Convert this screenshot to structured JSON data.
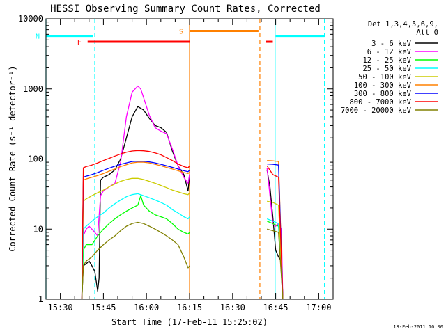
{
  "chart_data": {
    "type": "line",
    "title": "HESSI Observing Summary Count Rates, Corrected",
    "xlabel": "Start Time (17-Feb-11 15:25:02)",
    "ylabel": "Corrected Count Rate (s⁻¹ detector⁻¹)",
    "x_unit": "minutes since 15:25:02",
    "xlim": [
      0,
      100
    ],
    "ylim": [
      1,
      10000
    ],
    "yscale": "log",
    "xticks": [
      {
        "x": 5,
        "label": "15:30"
      },
      {
        "x": 20,
        "label": "15:45"
      },
      {
        "x": 35,
        "label": "16:00"
      },
      {
        "x": 50,
        "label": "16:15"
      },
      {
        "x": 65,
        "label": "16:30"
      },
      {
        "x": 80,
        "label": "16:45"
      },
      {
        "x": 95,
        "label": "17:00"
      }
    ],
    "yticks": [
      {
        "y": 1,
        "label": "1"
      },
      {
        "y": 10,
        "label": "10"
      },
      {
        "y": 100,
        "label": "100"
      },
      {
        "y": 1000,
        "label": "1000"
      },
      {
        "y": 10000,
        "label": "10000"
      }
    ],
    "legend_header": [
      "Det 1,3,4,5,6,9,",
      "Att 0"
    ],
    "legend_position": "right",
    "date_stamp": "18-Feb-2011 10:00",
    "series": [
      {
        "name": "3 - 6 keV",
        "color": "#000000",
        "segments": [
          [
            [
              12.5,
              1
            ],
            [
              13,
              3
            ],
            [
              14,
              3.2
            ],
            [
              15,
              3.5
            ],
            [
              16,
              3
            ],
            [
              17,
              2.5
            ],
            [
              18,
              1.3
            ],
            [
              18.5,
              2
            ],
            [
              19,
              50
            ],
            [
              20,
              55
            ],
            [
              22,
              60
            ],
            [
              24,
              70
            ],
            [
              26,
              100
            ],
            [
              28,
              200
            ],
            [
              30,
              400
            ],
            [
              32,
              560
            ],
            [
              34,
              500
            ],
            [
              36,
              380
            ],
            [
              38,
              300
            ],
            [
              40,
              280
            ],
            [
              42,
              240
            ],
            [
              44,
              130
            ],
            [
              46,
              80
            ],
            [
              48,
              60
            ],
            [
              49.5,
              35
            ],
            [
              50,
              60
            ]
          ],
          [
            [
              77,
              70
            ],
            [
              78,
              40
            ],
            [
              79,
              15
            ],
            [
              80,
              5
            ],
            [
              81,
              4
            ],
            [
              82,
              3.5
            ],
            [
              82.5,
              1
            ]
          ]
        ]
      },
      {
        "name": "6 - 12 keV",
        "color": "#ff00ff",
        "segments": [
          [
            [
              12.5,
              1
            ],
            [
              13,
              8
            ],
            [
              14,
              10
            ],
            [
              15,
              11
            ],
            [
              16,
              10
            ],
            [
              17,
              9
            ],
            [
              18,
              8
            ],
            [
              19,
              30
            ],
            [
              20,
              35
            ],
            [
              22,
              40
            ],
            [
              24,
              45
            ],
            [
              26,
              90
            ],
            [
              28,
              400
            ],
            [
              30,
              900
            ],
            [
              32,
              1100
            ],
            [
              33,
              1000
            ],
            [
              34,
              750
            ],
            [
              36,
              420
            ],
            [
              38,
              280
            ],
            [
              40,
              250
            ],
            [
              42,
              230
            ],
            [
              44,
              140
            ],
            [
              46,
              80
            ],
            [
              48,
              55
            ],
            [
              49.5,
              45
            ],
            [
              50,
              60
            ]
          ],
          [
            [
              77,
              75
            ],
            [
              78,
              30
            ],
            [
              79,
              12
            ],
            [
              80,
              11
            ],
            [
              81,
              12
            ],
            [
              82,
              10
            ],
            [
              82.5,
              1
            ]
          ]
        ]
      },
      {
        "name": "12 - 25 keV",
        "color": "#00ff00",
        "segments": [
          [
            [
              12.5,
              1
            ],
            [
              13,
              5
            ],
            [
              14,
              6
            ],
            [
              16,
              6
            ],
            [
              18,
              8
            ],
            [
              20,
              10
            ],
            [
              22,
              12
            ],
            [
              24,
              14
            ],
            [
              26,
              16
            ],
            [
              28,
              18
            ],
            [
              30,
              20
            ],
            [
              32,
              22
            ],
            [
              33,
              30
            ],
            [
              34,
              22
            ],
            [
              36,
              18
            ],
            [
              38,
              16
            ],
            [
              40,
              15
            ],
            [
              42,
              14
            ],
            [
              44,
              12
            ],
            [
              46,
              10
            ],
            [
              48,
              9
            ],
            [
              49.5,
              8.5
            ],
            [
              50,
              9
            ]
          ],
          [
            [
              77,
              13
            ],
            [
              79,
              12
            ],
            [
              81,
              11
            ],
            [
              82.5,
              1
            ]
          ]
        ]
      },
      {
        "name": "25 - 50 keV",
        "color": "#00ffff",
        "segments": [
          [
            [
              12.5,
              1
            ],
            [
              13,
              10
            ],
            [
              14,
              11
            ],
            [
              16,
              13
            ],
            [
              18,
              15
            ],
            [
              20,
              17
            ],
            [
              22,
              20
            ],
            [
              24,
              23
            ],
            [
              26,
              26
            ],
            [
              28,
              29
            ],
            [
              30,
              31
            ],
            [
              32,
              32
            ],
            [
              34,
              30
            ],
            [
              36,
              28
            ],
            [
              38,
              26
            ],
            [
              40,
              24
            ],
            [
              42,
              22
            ],
            [
              44,
              19
            ],
            [
              46,
              17
            ],
            [
              48,
              15
            ],
            [
              49.5,
              14
            ],
            [
              50,
              15
            ]
          ],
          [
            [
              77,
              14
            ],
            [
              79,
              13
            ],
            [
              81,
              12
            ],
            [
              82.5,
              1
            ]
          ]
        ]
      },
      {
        "name": "50 - 100 keV",
        "color": "#cccc00",
        "segments": [
          [
            [
              12.5,
              1
            ],
            [
              13,
              25
            ],
            [
              14,
              27
            ],
            [
              16,
              30
            ],
            [
              18,
              33
            ],
            [
              20,
              36
            ],
            [
              22,
              40
            ],
            [
              24,
              44
            ],
            [
              26,
              48
            ],
            [
              28,
              51
            ],
            [
              30,
              53
            ],
            [
              32,
              53
            ],
            [
              34,
              51
            ],
            [
              36,
              48
            ],
            [
              38,
              45
            ],
            [
              40,
              42
            ],
            [
              42,
              39
            ],
            [
              44,
              36
            ],
            [
              46,
              34
            ],
            [
              48,
              32
            ],
            [
              49.5,
              31
            ],
            [
              50,
              33
            ]
          ],
          [
            [
              77,
              25
            ],
            [
              79,
              24
            ],
            [
              81,
              22
            ],
            [
              82.5,
              1
            ]
          ]
        ]
      },
      {
        "name": "100 - 300 keV",
        "color": "#ff8000",
        "segments": [
          [
            [
              12.5,
              1
            ],
            [
              13,
              50
            ],
            [
              14,
              52
            ],
            [
              16,
              55
            ],
            [
              18,
              58
            ],
            [
              20,
              62
            ],
            [
              22,
              67
            ],
            [
              24,
              72
            ],
            [
              26,
              78
            ],
            [
              28,
              83
            ],
            [
              30,
              88
            ],
            [
              32,
              90
            ],
            [
              34,
              90
            ],
            [
              36,
              88
            ],
            [
              38,
              84
            ],
            [
              40,
              80
            ],
            [
              42,
              76
            ],
            [
              44,
              72
            ],
            [
              46,
              68
            ],
            [
              48,
              64
            ],
            [
              49.5,
              62
            ],
            [
              50,
              65
            ]
          ],
          [
            [
              77,
              95
            ],
            [
              79,
              94
            ],
            [
              81,
              92
            ],
            [
              82.5,
              1
            ]
          ]
        ]
      },
      {
        "name": "300 - 800 keV",
        "color": "#0000ff",
        "segments": [
          [
            [
              12.5,
              1
            ],
            [
              13,
              55
            ],
            [
              14,
              57
            ],
            [
              16,
              60
            ],
            [
              18,
              64
            ],
            [
              20,
              69
            ],
            [
              22,
              74
            ],
            [
              24,
              79
            ],
            [
              26,
              84
            ],
            [
              28,
              88
            ],
            [
              30,
              92
            ],
            [
              32,
              93
            ],
            [
              34,
              93
            ],
            [
              36,
              91
            ],
            [
              38,
              88
            ],
            [
              40,
              84
            ],
            [
              42,
              80
            ],
            [
              44,
              76
            ],
            [
              46,
              72
            ],
            [
              48,
              68
            ],
            [
              49.5,
              66
            ],
            [
              50,
              69
            ]
          ],
          [
            [
              77,
              85
            ],
            [
              79,
              84
            ],
            [
              81,
              82
            ],
            [
              82.5,
              1
            ]
          ]
        ]
      },
      {
        "name": "800 - 7000 keV",
        "color": "#ff0000",
        "segments": [
          [
            [
              12.5,
              1
            ],
            [
              13,
              75
            ],
            [
              14,
              78
            ],
            [
              16,
              82
            ],
            [
              18,
              88
            ],
            [
              20,
              95
            ],
            [
              22,
              102
            ],
            [
              24,
              110
            ],
            [
              26,
              118
            ],
            [
              28,
              125
            ],
            [
              30,
              130
            ],
            [
              32,
              132
            ],
            [
              34,
              131
            ],
            [
              36,
              128
            ],
            [
              38,
              122
            ],
            [
              40,
              115
            ],
            [
              42,
              105
            ],
            [
              44,
              95
            ],
            [
              46,
              85
            ],
            [
              48,
              78
            ],
            [
              49.5,
              75
            ],
            [
              50,
              80
            ]
          ],
          [
            [
              77,
              80
            ],
            [
              79,
              60
            ],
            [
              81,
              55
            ],
            [
              82.5,
              1
            ]
          ]
        ]
      },
      {
        "name": "7000 - 20000 keV",
        "color": "#808000",
        "segments": [
          [
            [
              12.5,
              1
            ],
            [
              13,
              3
            ],
            [
              14,
              3.5
            ],
            [
              16,
              4
            ],
            [
              18,
              5
            ],
            [
              20,
              6
            ],
            [
              22,
              7
            ],
            [
              24,
              8
            ],
            [
              26,
              9.5
            ],
            [
              28,
              11
            ],
            [
              30,
              12
            ],
            [
              32,
              12.5
            ],
            [
              34,
              12
            ],
            [
              36,
              11
            ],
            [
              38,
              10
            ],
            [
              40,
              9
            ],
            [
              42,
              8
            ],
            [
              44,
              7
            ],
            [
              46,
              6
            ],
            [
              48,
              4
            ],
            [
              49.5,
              2.8
            ],
            [
              50,
              3
            ]
          ],
          [
            [
              77,
              10
            ],
            [
              79,
              9.5
            ],
            [
              81,
              9
            ],
            [
              82.5,
              1
            ]
          ]
        ]
      }
    ],
    "flags": [
      {
        "label": "F",
        "color": "#ff0000",
        "y": 4700,
        "start": 14.5,
        "end": 50
      },
      {
        "label": "",
        "color": "#ff0000",
        "y": 4700,
        "start": 76.5,
        "end": 79
      },
      {
        "label": "N",
        "color": "#00ffff",
        "y": 5700,
        "start": 0,
        "end": 16.5
      },
      {
        "label": "",
        "color": "#00ffff",
        "y": 5700,
        "start": 80,
        "end": 97
      },
      {
        "label": "S",
        "color": "#ff8000",
        "y": 6700,
        "start": 50,
        "end": 74
      }
    ],
    "vlines": [
      {
        "x": 0,
        "color": "#00ffff",
        "dash": false
      },
      {
        "x": 17,
        "color": "#00ffff",
        "dash": true
      },
      {
        "x": 50,
        "color": "#ff8000",
        "dash": false
      },
      {
        "x": 74.5,
        "color": "#ff8000",
        "dash": true
      },
      {
        "x": 79.8,
        "color": "#00ffff",
        "dash": false
      },
      {
        "x": 97,
        "color": "#00ffff",
        "dash": true
      }
    ]
  }
}
